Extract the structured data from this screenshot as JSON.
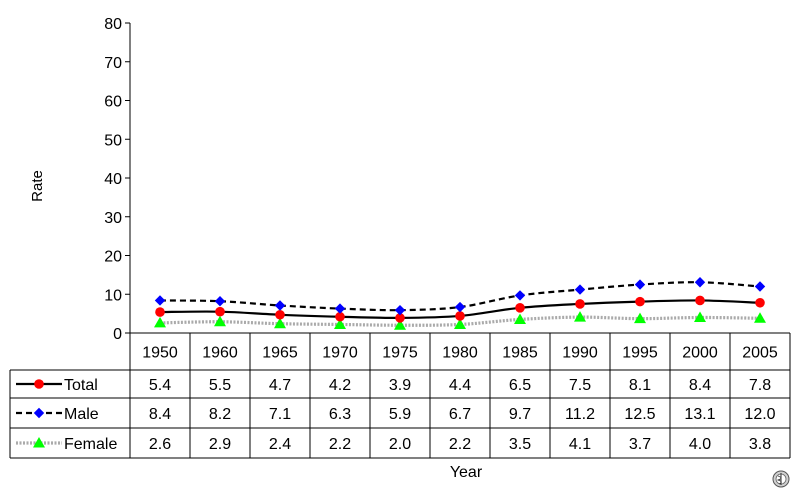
{
  "chart_data": {
    "type": "line",
    "title": "",
    "xlabel": "Year",
    "ylabel": "Rate",
    "ylim": [
      0,
      80
    ],
    "yticks": [
      0,
      10,
      20,
      30,
      40,
      50,
      60,
      70,
      80
    ],
    "grid": false,
    "legend": "data-table-left",
    "categories": [
      "1950",
      "1960",
      "1965",
      "1970",
      "1975",
      "1980",
      "1985",
      "1990",
      "1995",
      "2000",
      "2005"
    ],
    "series": [
      {
        "name": "Total",
        "values": [
          5.4,
          5.5,
          4.7,
          4.2,
          3.9,
          4.4,
          6.5,
          7.5,
          8.1,
          8.4,
          7.8
        ],
        "labels": [
          "5.4",
          "5.5",
          "4.7",
          "4.2",
          "3.9",
          "4.4",
          "6.5",
          "7.5",
          "8.1",
          "8.4",
          "7.8"
        ],
        "color": "#000000",
        "marker": "circle",
        "marker_color": "#ff0000",
        "line_style": "solid"
      },
      {
        "name": "Male",
        "values": [
          8.4,
          8.2,
          7.1,
          6.3,
          5.9,
          6.7,
          9.7,
          11.2,
          12.5,
          13.1,
          12.0
        ],
        "labels": [
          "8.4",
          "8.2",
          "7.1",
          "6.3",
          "5.9",
          "6.7",
          "9.7",
          "11.2",
          "12.5",
          "13.1",
          "12.0"
        ],
        "color": "#000000",
        "marker": "diamond",
        "marker_color": "#0000ff",
        "line_style": "dashed"
      },
      {
        "name": "Female",
        "values": [
          2.6,
          2.9,
          2.4,
          2.2,
          2.0,
          2.2,
          3.5,
          4.1,
          3.7,
          4.0,
          3.8
        ],
        "labels": [
          "2.6",
          "2.9",
          "2.4",
          "2.2",
          "2.0",
          "2.2",
          "3.5",
          "4.1",
          "3.7",
          "4.0",
          "3.8"
        ],
        "color": "#aaaaaa",
        "marker": "triangle",
        "marker_color": "#00ff00",
        "line_style": "dotted"
      }
    ]
  },
  "icons": {
    "logo": "who-emblem-icon"
  }
}
